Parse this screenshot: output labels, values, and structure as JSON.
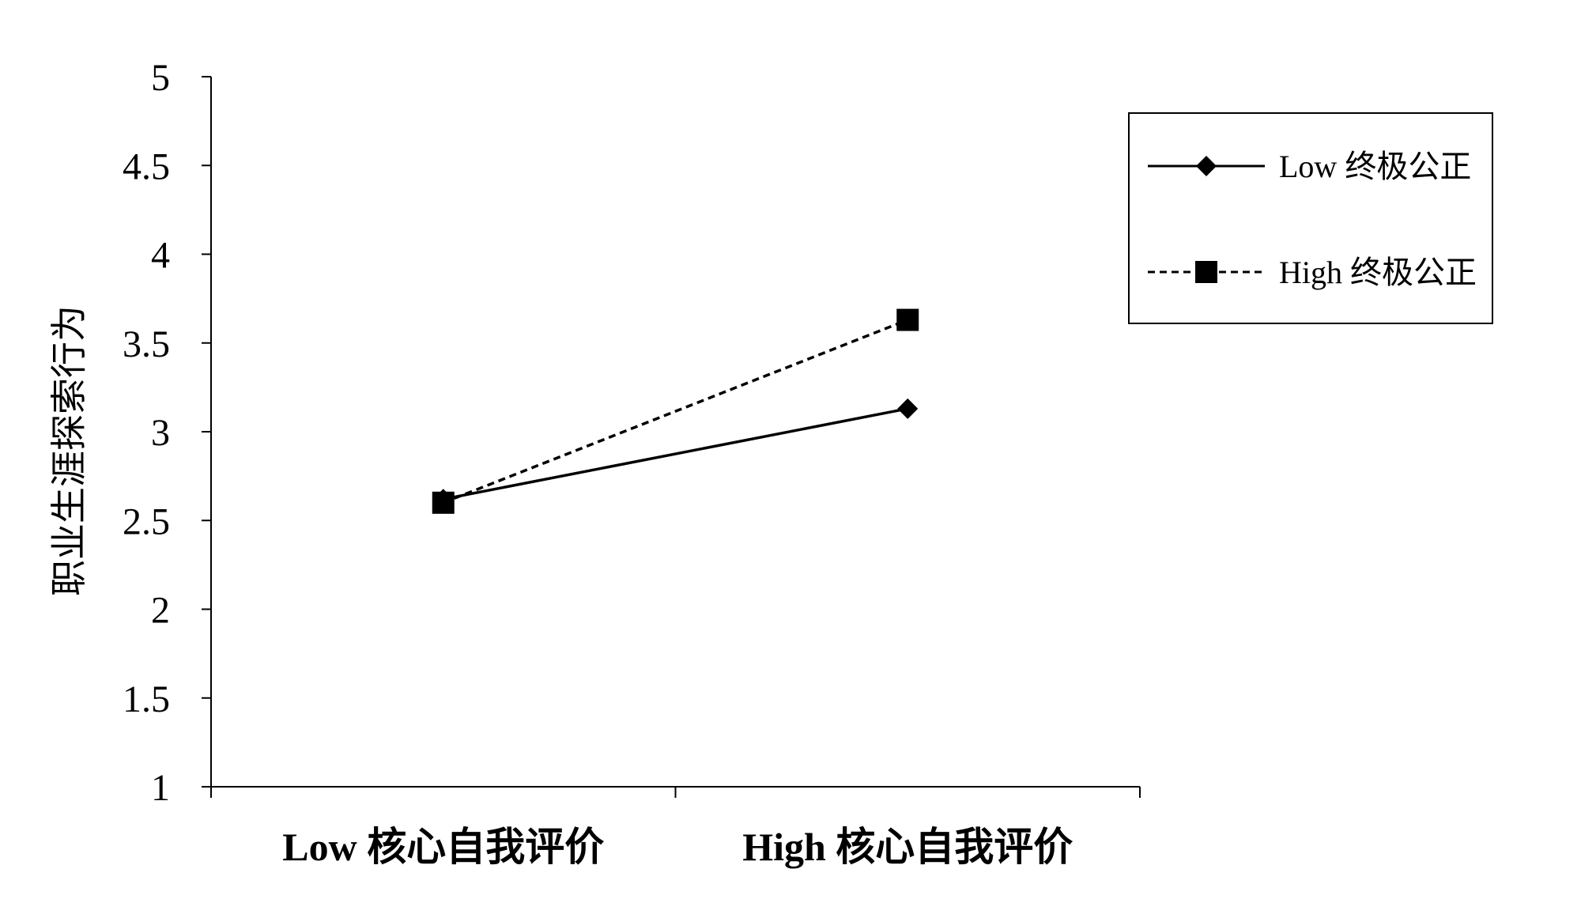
{
  "chart_data": {
    "type": "line",
    "categories": [
      "Low 核心自我评价",
      "High 核心自我评价"
    ],
    "series": [
      {
        "name": "Low 终极公正",
        "values": [
          2.62,
          3.13
        ],
        "marker": "diamond",
        "line_style": "solid",
        "color": "#000000"
      },
      {
        "name": "High 终极公正",
        "values": [
          2.6,
          3.63
        ],
        "marker": "square",
        "line_style": "dashed",
        "color": "#000000"
      }
    ],
    "yticks": [
      "1",
      "1.5",
      "2",
      "2.5",
      "3",
      "3.5",
      "4",
      "4.5",
      "5"
    ],
    "ylim": [
      1,
      5
    ],
    "ylabel": "职业生涯探索行为",
    "xlabel": "",
    "title": "",
    "grid": false,
    "legend_position": "top-right"
  }
}
